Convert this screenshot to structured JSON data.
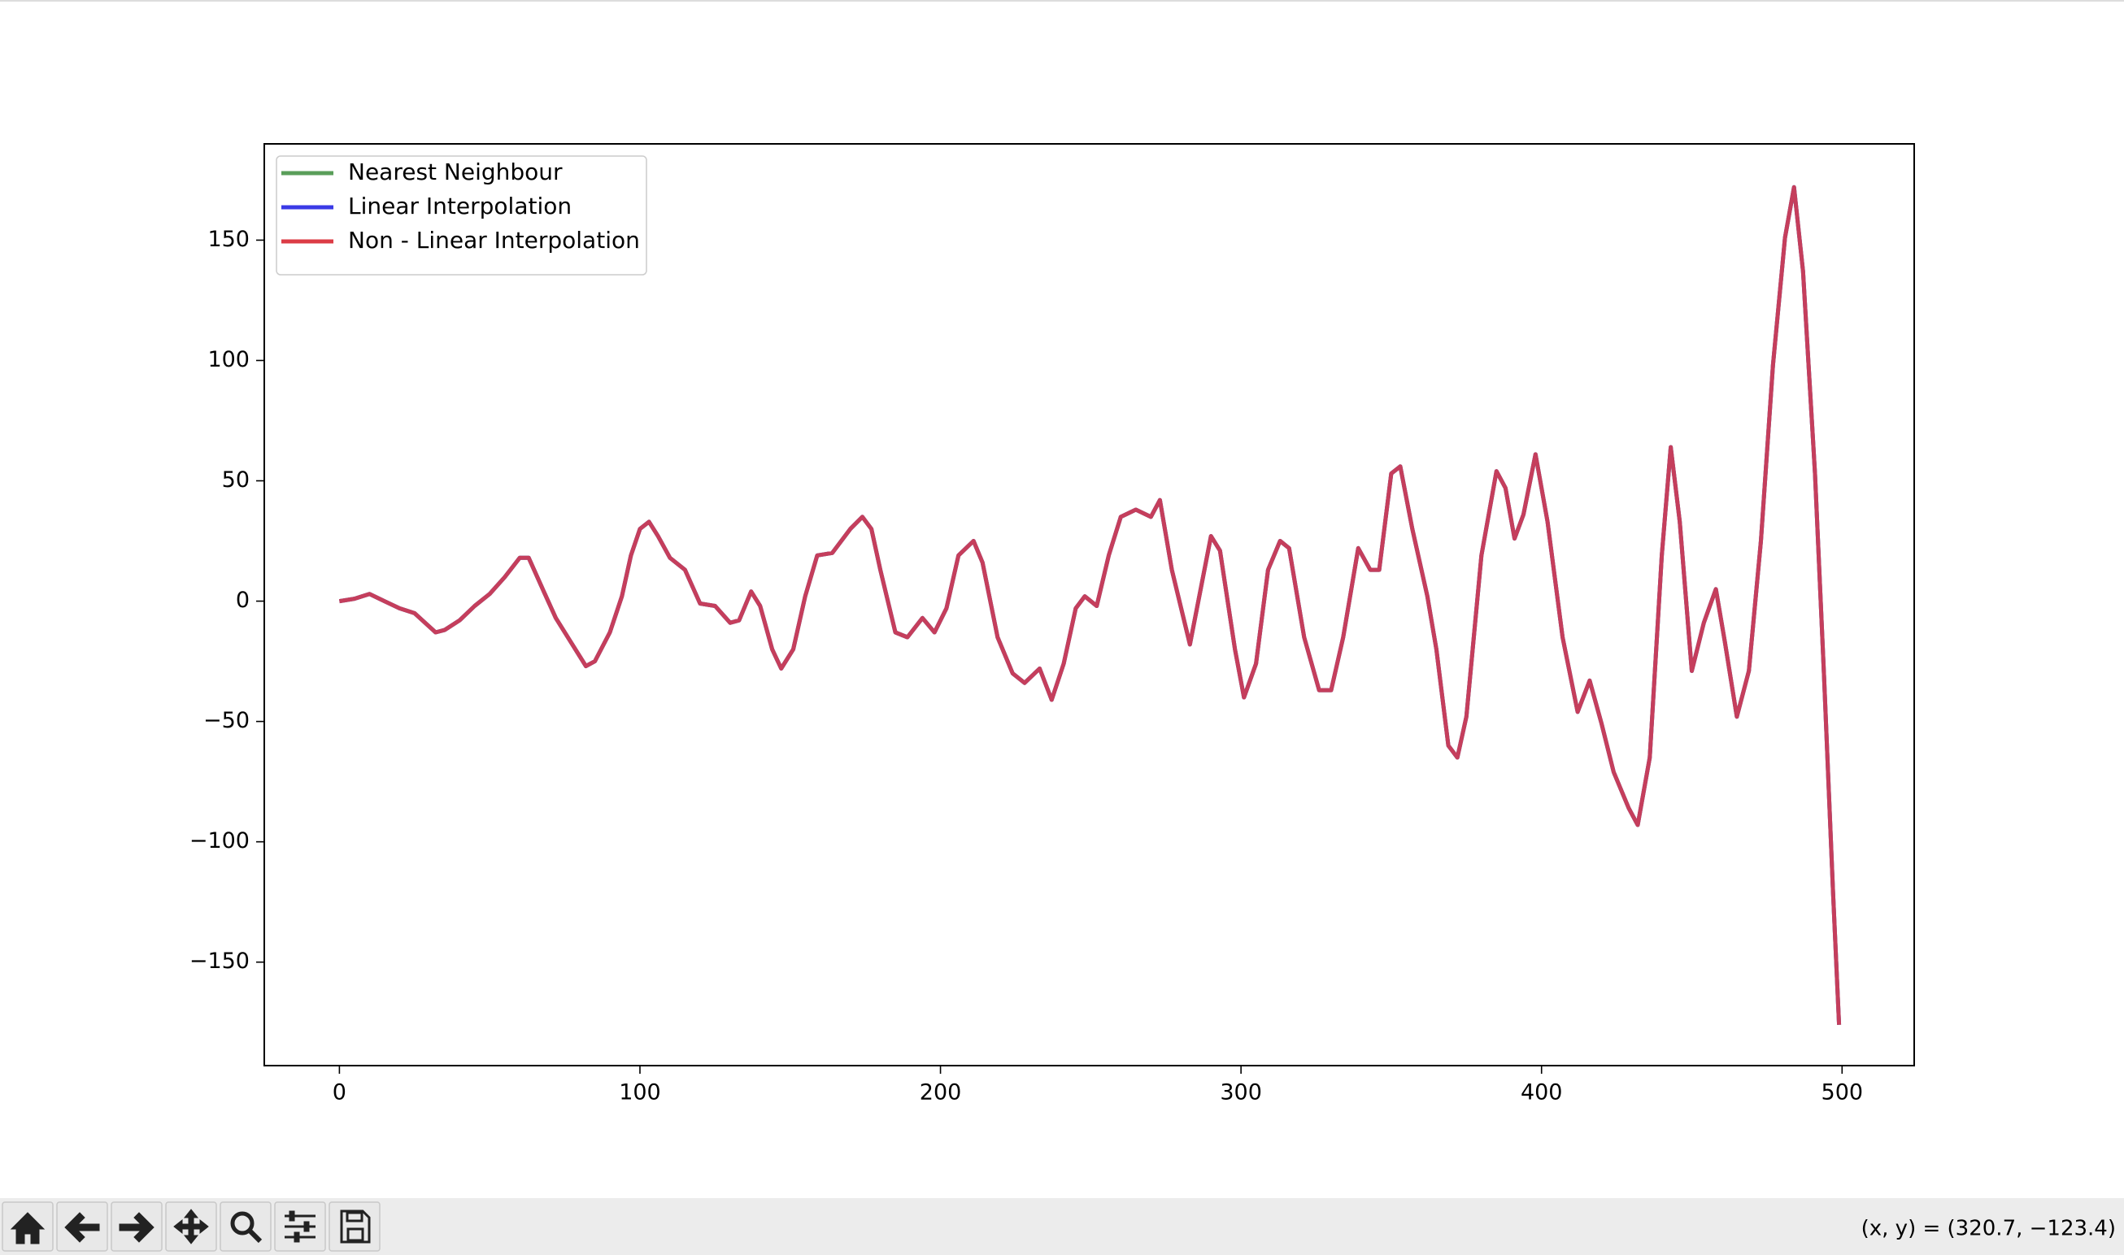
{
  "chart_data": {
    "type": "line",
    "x": [
      0,
      5,
      10,
      15,
      20,
      25,
      32,
      35,
      40,
      45,
      50,
      55,
      60,
      63,
      68,
      72,
      77,
      82,
      85,
      90,
      94,
      97,
      100,
      103,
      106,
      110,
      115,
      120,
      125,
      130,
      133,
      137,
      140,
      144,
      147,
      151,
      155,
      159,
      164,
      170,
      174,
      177,
      180,
      185,
      189,
      194,
      198,
      202,
      206,
      211,
      214,
      219,
      224,
      228,
      233,
      237,
      241,
      245,
      248,
      252,
      256,
      260,
      265,
      270,
      273,
      277,
      283,
      290,
      293,
      298,
      301,
      305,
      309,
      313,
      316,
      321,
      326,
      330,
      334,
      339,
      343,
      346,
      350,
      353,
      357,
      362,
      365,
      369,
      372,
      375,
      380,
      385,
      388,
      391,
      394,
      398,
      402,
      407,
      412,
      416,
      420,
      424,
      429,
      432,
      436,
      440,
      443,
      446,
      450,
      454,
      458,
      461,
      465,
      469,
      473,
      477,
      481,
      484,
      487,
      491,
      494,
      497,
      499
    ],
    "series": [
      {
        "name": "Nearest Neighbour",
        "color": "#5a9e5a",
        "values": [
          0,
          1,
          3,
          0,
          -3,
          -5,
          -13,
          -12,
          -8,
          -2,
          3,
          10,
          18,
          18,
          4,
          -7,
          -17,
          -27,
          -25,
          -13,
          2,
          19,
          30,
          33,
          27,
          18,
          13,
          -1,
          -2,
          -9,
          -8,
          4,
          -2,
          -20,
          -28,
          -20,
          2,
          19,
          20,
          30,
          35,
          30,
          13,
          -13,
          -15,
          -7,
          -13,
          -3,
          19,
          25,
          16,
          -15,
          -30,
          -34,
          -28,
          -41,
          -26,
          -3,
          2,
          -2,
          19,
          35,
          38,
          35,
          42,
          13,
          -18,
          27,
          21,
          -20,
          -40,
          -26,
          13,
          25,
          22,
          -15,
          -37,
          -37,
          -15,
          22,
          13,
          13,
          53,
          56,
          30,
          2,
          -20,
          -60,
          -65,
          -48,
          19,
          54,
          47,
          26,
          36,
          61,
          33,
          -15,
          -46,
          -33,
          -51,
          -71,
          -86,
          -93,
          -65,
          19,
          64,
          33,
          -29,
          -9,
          5,
          -17,
          -48,
          -29,
          25,
          98,
          151,
          172,
          137,
          53,
          -31,
          -121,
          -176
        ]
      },
      {
        "name": "Linear Interpolation",
        "color": "#3a3ae6",
        "values": [
          0,
          1,
          3,
          0,
          -3,
          -5,
          -13,
          -12,
          -8,
          -2,
          3,
          10,
          18,
          18,
          4,
          -7,
          -17,
          -27,
          -25,
          -13,
          2,
          19,
          30,
          33,
          27,
          18,
          13,
          -1,
          -2,
          -9,
          -8,
          4,
          -2,
          -20,
          -28,
          -20,
          2,
          19,
          20,
          30,
          35,
          30,
          13,
          -13,
          -15,
          -7,
          -13,
          -3,
          19,
          25,
          16,
          -15,
          -30,
          -34,
          -28,
          -41,
          -26,
          -3,
          2,
          -2,
          19,
          35,
          38,
          35,
          42,
          13,
          -18,
          27,
          21,
          -20,
          -40,
          -26,
          13,
          25,
          22,
          -15,
          -37,
          -37,
          -15,
          22,
          13,
          13,
          53,
          56,
          30,
          2,
          -20,
          -60,
          -65,
          -48,
          19,
          54,
          47,
          26,
          36,
          61,
          33,
          -15,
          -46,
          -33,
          -51,
          -71,
          -86,
          -93,
          -65,
          19,
          64,
          33,
          -29,
          -9,
          5,
          -17,
          -48,
          -29,
          25,
          98,
          151,
          172,
          137,
          53,
          -31,
          -121,
          -176
        ]
      },
      {
        "name": "Non - Linear Interpolation",
        "color": "#dc3c46",
        "values": [
          0,
          1,
          3,
          0,
          -3,
          -5,
          -13,
          -12,
          -8,
          -2,
          3,
          10,
          18,
          18,
          4,
          -7,
          -17,
          -27,
          -25,
          -13,
          2,
          19,
          30,
          33,
          27,
          18,
          13,
          -1,
          -2,
          -9,
          -8,
          4,
          -2,
          -20,
          -28,
          -20,
          2,
          19,
          20,
          30,
          35,
          30,
          13,
          -13,
          -15,
          -7,
          -13,
          -3,
          19,
          25,
          16,
          -15,
          -30,
          -34,
          -28,
          -41,
          -26,
          -3,
          2,
          -2,
          19,
          35,
          38,
          35,
          42,
          13,
          -18,
          27,
          21,
          -20,
          -40,
          -26,
          13,
          25,
          22,
          -15,
          -37,
          -37,
          -15,
          22,
          13,
          13,
          53,
          56,
          30,
          2,
          -20,
          -60,
          -65,
          -48,
          19,
          54,
          47,
          26,
          36,
          61,
          33,
          -15,
          -46,
          -33,
          -51,
          -71,
          -86,
          -93,
          -65,
          19,
          64,
          33,
          -29,
          -9,
          5,
          -17,
          -48,
          -29,
          25,
          98,
          151,
          172,
          137,
          53,
          -31,
          -121,
          -176
        ]
      }
    ],
    "xlim": [
      -25,
      524
    ],
    "ylim": [
      -193,
      190
    ],
    "xticks": [
      0,
      100,
      200,
      300,
      400,
      500
    ],
    "yticks": [
      {
        "value": -150,
        "label": "−150"
      },
      {
        "value": -100,
        "label": "−100"
      },
      {
        "value": -50,
        "label": "−50"
      },
      0,
      50,
      100,
      150
    ],
    "legend": "upper left",
    "grid": false
  },
  "toolbar": {
    "coordinates": "(x, y) = (320.7, −123.4)"
  }
}
